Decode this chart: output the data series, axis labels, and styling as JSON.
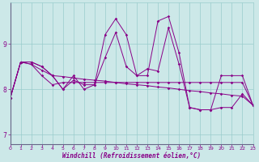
{
  "xlabel": "Windchill (Refroidissement éolien,°C)",
  "background_color": "#cce8e8",
  "line_color": "#880088",
  "grid_color": "#99cccc",
  "hours": [
    0,
    1,
    2,
    3,
    4,
    5,
    6,
    7,
    8,
    9,
    10,
    11,
    12,
    13,
    14,
    15,
    16,
    17,
    18,
    19,
    20,
    21,
    22,
    23
  ],
  "series": [
    [
      7.8,
      8.6,
      8.6,
      8.5,
      8.3,
      8.0,
      8.3,
      8.0,
      8.1,
      9.2,
      9.55,
      9.2,
      8.3,
      8.3,
      9.5,
      9.6,
      8.8,
      7.6,
      7.55,
      7.55,
      7.6,
      7.6,
      7.9,
      7.65
    ],
    [
      7.8,
      8.6,
      8.6,
      8.5,
      8.3,
      8.0,
      8.2,
      8.1,
      8.1,
      8.7,
      9.25,
      8.5,
      8.3,
      8.45,
      8.4,
      9.35,
      8.55,
      7.6,
      7.55,
      7.55,
      8.3,
      8.3,
      8.3,
      7.65
    ],
    [
      7.8,
      8.6,
      8.55,
      8.42,
      8.3,
      8.28,
      8.25,
      8.22,
      8.2,
      8.18,
      8.15,
      8.12,
      8.1,
      8.08,
      8.05,
      8.03,
      8.0,
      7.97,
      7.95,
      7.92,
      7.9,
      7.87,
      7.85,
      7.65
    ],
    [
      7.8,
      8.6,
      8.55,
      8.3,
      8.1,
      8.15,
      8.15,
      8.15,
      8.15,
      8.15,
      8.15,
      8.15,
      8.15,
      8.15,
      8.15,
      8.15,
      8.15,
      8.15,
      8.15,
      8.15,
      8.15,
      8.15,
      8.15,
      7.65
    ]
  ],
  "ylim": [
    6.8,
    9.9
  ],
  "xlim": [
    0,
    23
  ],
  "yticks": [
    7,
    8,
    9
  ],
  "xticks": [
    0,
    1,
    2,
    3,
    4,
    5,
    6,
    7,
    8,
    9,
    10,
    11,
    12,
    13,
    14,
    15,
    16,
    17,
    18,
    19,
    20,
    21,
    22,
    23
  ],
  "xlabel_color": "#880088",
  "tick_color": "#880088",
  "spine_left_color": "#666688",
  "spine_bottom_color": "#666688"
}
